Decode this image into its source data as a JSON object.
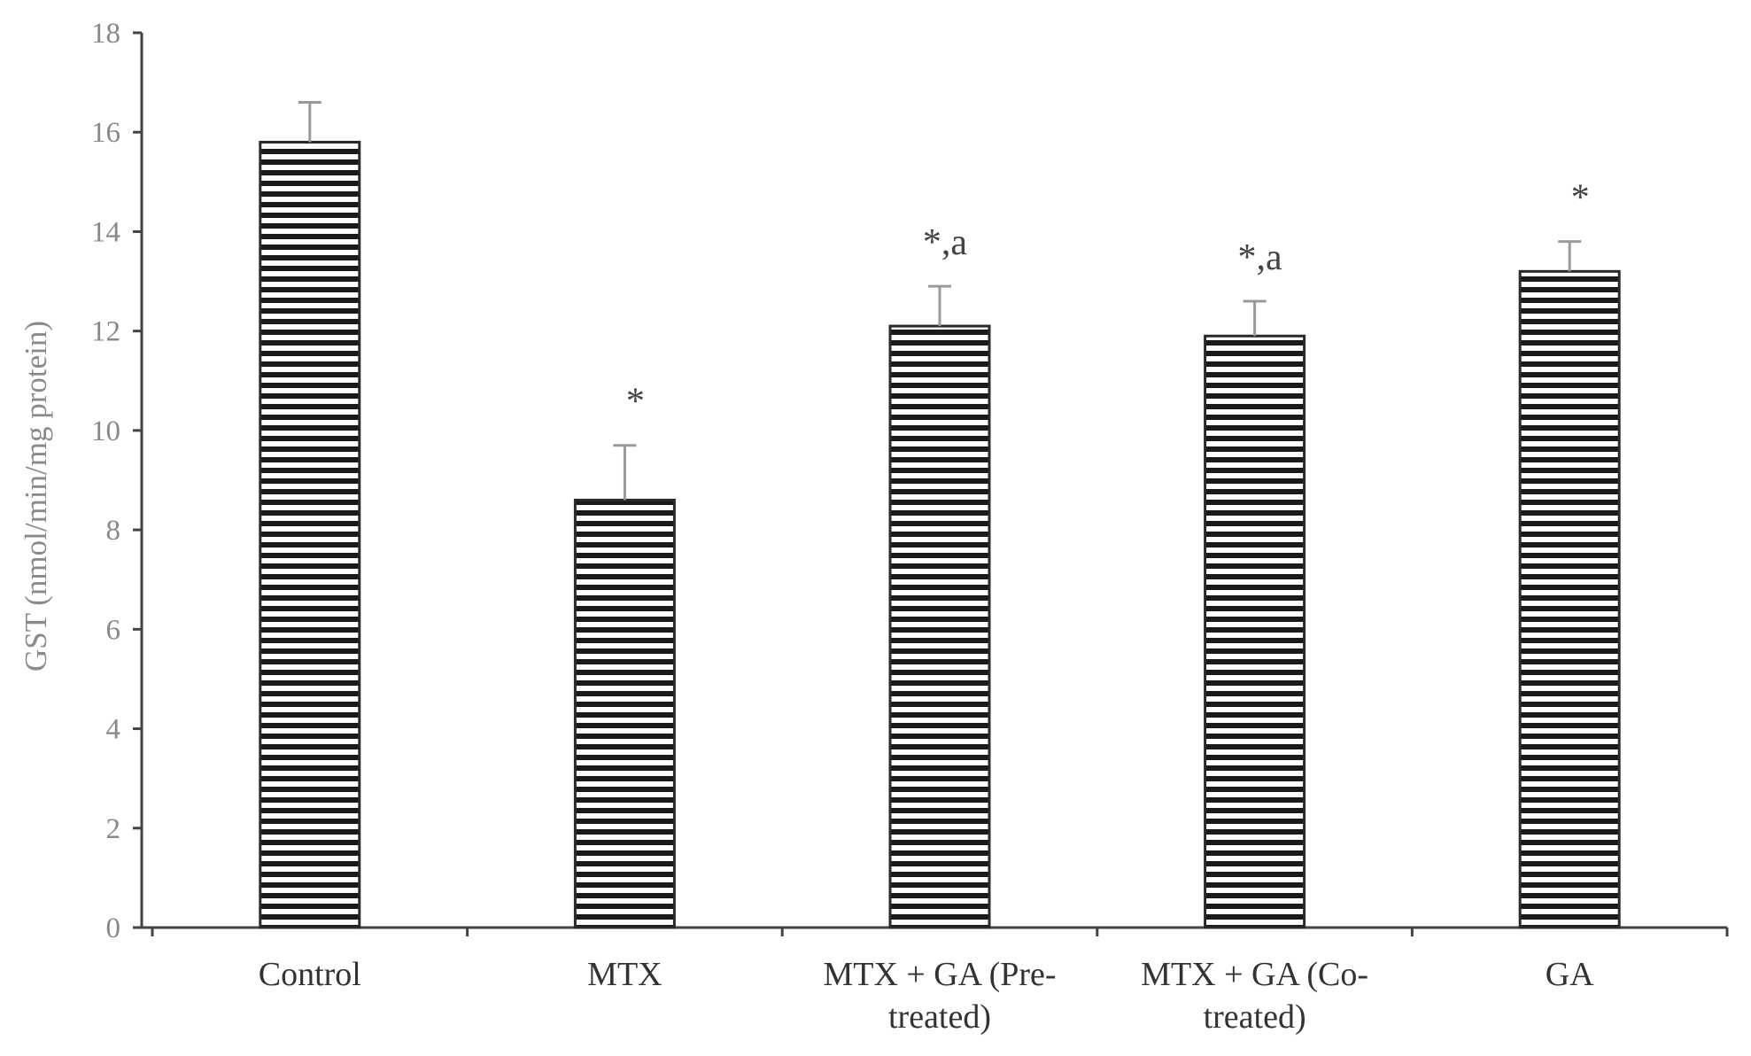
{
  "chart_data": {
    "type": "bar",
    "categories": [
      [
        "Control"
      ],
      [
        "MTX"
      ],
      [
        "MTX + GA (Pre-",
        "treated)"
      ],
      [
        "MTX + GA (Co-",
        "treated)"
      ],
      [
        "GA"
      ]
    ],
    "values": [
      15.8,
      8.6,
      12.1,
      11.9,
      13.2
    ],
    "errors": [
      0.8,
      1.1,
      0.8,
      0.7,
      0.6
    ],
    "annotations": [
      "",
      "*",
      "*,a",
      "*,a",
      "*"
    ],
    "title": "",
    "xlabel": "",
    "ylabel": "GST (nmol/min/mg protein)",
    "ylim": [
      0,
      18
    ],
    "yticks": [
      "0",
      "2",
      "4",
      "6",
      "8",
      "10",
      "12",
      "14",
      "16",
      "18"
    ],
    "grid": false,
    "legend": "none",
    "bar_fill": "horizontal stripes",
    "colors": {
      "stripe_dark": "#1a1a1a",
      "stripe_light": "#ffffff",
      "error_bar": "#9a9a9a",
      "axis": "#444444"
    }
  }
}
